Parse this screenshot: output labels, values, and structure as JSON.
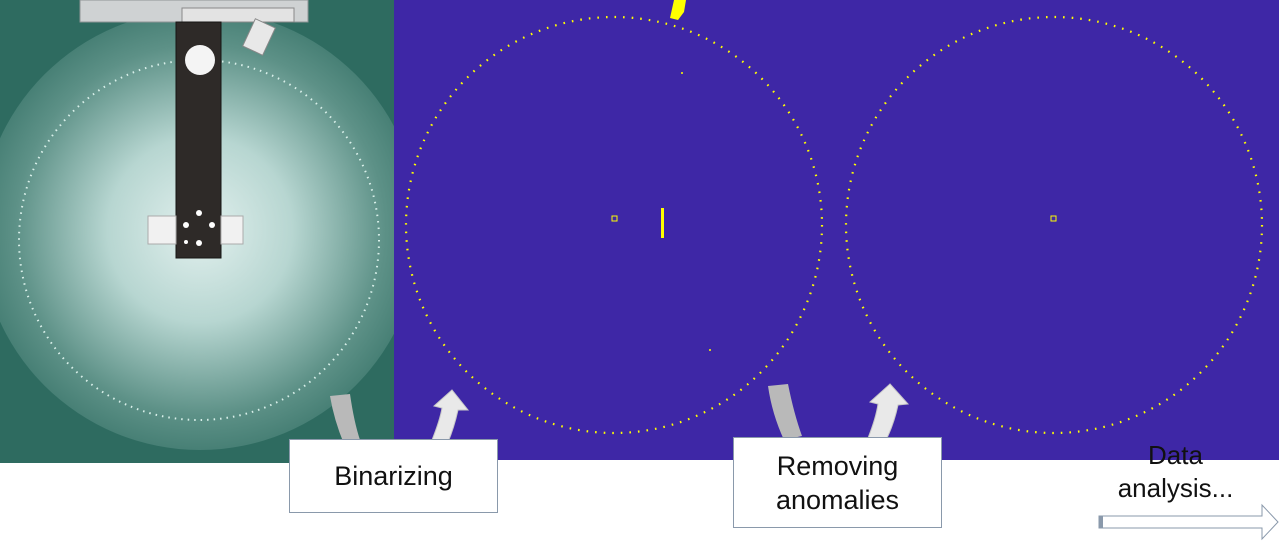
{
  "steps": [
    {
      "label": "Binarizing"
    },
    {
      "label": "Removing anomalies"
    },
    {
      "label": "Data analysis..."
    }
  ],
  "colors": {
    "photo_background": "#2f6b60",
    "binary_background": "#3e27a6",
    "binary_foreground": "#ffff00",
    "arrow_fill": "#b9b9b9",
    "box_border": "#8a99ab"
  }
}
